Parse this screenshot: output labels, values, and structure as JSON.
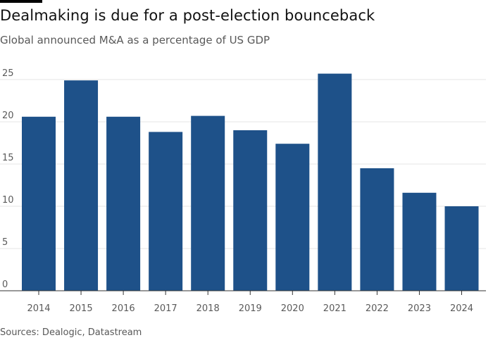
{
  "header": {
    "title": "Dealmaking is due for a post-election bounceback",
    "subtitle": "Global announced M&A as a percentage of US GDP"
  },
  "footer": {
    "source": "Sources: Dealogic, Datastream"
  },
  "colors": {
    "bar": "#1e5189",
    "grid": "#e6e6e6",
    "axis_text": "#5a5a5a",
    "baseline": "#333333",
    "top_rule": "#000000"
  },
  "chart_data": {
    "type": "bar",
    "title": "Dealmaking is due for a post-election bounceback",
    "subtitle": "Global announced M&A as a percentage of US GDP",
    "xlabel": "",
    "ylabel": "",
    "categories": [
      "2014",
      "2015",
      "2016",
      "2017",
      "2018",
      "2019",
      "2020",
      "2021",
      "2022",
      "2023",
      "2024"
    ],
    "values": [
      20.6,
      24.9,
      20.6,
      18.8,
      20.7,
      19.0,
      17.4,
      25.7,
      14.5,
      11.6,
      10.0
    ],
    "ylim": [
      0,
      25
    ],
    "yticks": [
      0,
      5,
      10,
      15,
      20,
      25
    ],
    "grid": true,
    "legend": "none"
  }
}
